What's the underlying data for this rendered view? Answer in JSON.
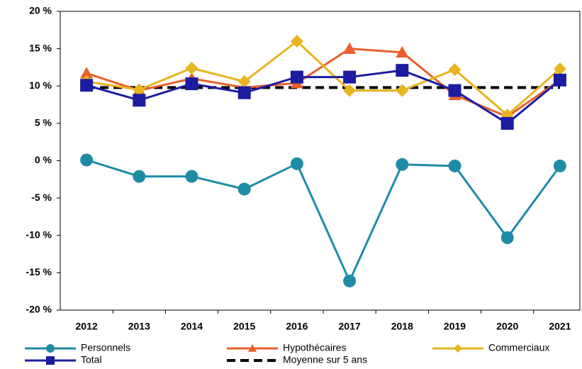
{
  "chart_data": {
    "type": "line",
    "categories": [
      "2012",
      "2013",
      "2014",
      "2015",
      "2016",
      "2017",
      "2018",
      "2019",
      "2020",
      "2021"
    ],
    "ylim": [
      -20,
      20
    ],
    "yticks": [
      {
        "value": -20,
        "label": "-20 %"
      },
      {
        "value": -15,
        "label": "-15 %"
      },
      {
        "value": -10,
        "label": "-10 %"
      },
      {
        "value": -5,
        "label": "-5 %"
      },
      {
        "value": 0,
        "label": "0 %"
      },
      {
        "value": 5,
        "label": "5 %"
      },
      {
        "value": 10,
        "label": "10 %"
      },
      {
        "value": 15,
        "label": "15 %"
      },
      {
        "value": 20,
        "label": "20 %"
      }
    ],
    "grid": false,
    "legend": "bottom",
    "series": [
      {
        "name": "Personnels",
        "color": "#1f8ca6",
        "marker": "circle",
        "values": [
          0.1,
          -2.1,
          -2.1,
          -3.8,
          -0.4,
          -16.1,
          -0.5,
          -0.7,
          -10.3,
          -0.7
        ]
      },
      {
        "name": "Hypothécaires",
        "color": "#e8602c",
        "marker": "triangle",
        "values": [
          11.7,
          9.4,
          11.0,
          9.8,
          10.4,
          15.0,
          14.5,
          8.8,
          5.9,
          10.8
        ]
      },
      {
        "name": "Commerciaux",
        "color": "#e8b420",
        "marker": "diamond",
        "values": [
          10.6,
          9.5,
          12.4,
          10.6,
          16.0,
          9.4,
          9.4,
          12.2,
          6.1,
          12.3
        ]
      },
      {
        "name": "Total",
        "color": "#1c1ca0",
        "marker": "square",
        "values": [
          10.1,
          8.1,
          10.3,
          9.1,
          11.2,
          11.2,
          12.1,
          9.4,
          5.0,
          10.8
        ]
      },
      {
        "name": "Moyenne sur 5 ans",
        "color": "#000000",
        "marker": "none",
        "dashed": true,
        "values": [
          9.8,
          9.8,
          9.8,
          9.8,
          9.8,
          9.8,
          9.8,
          9.8,
          9.8,
          9.8
        ]
      }
    ]
  }
}
